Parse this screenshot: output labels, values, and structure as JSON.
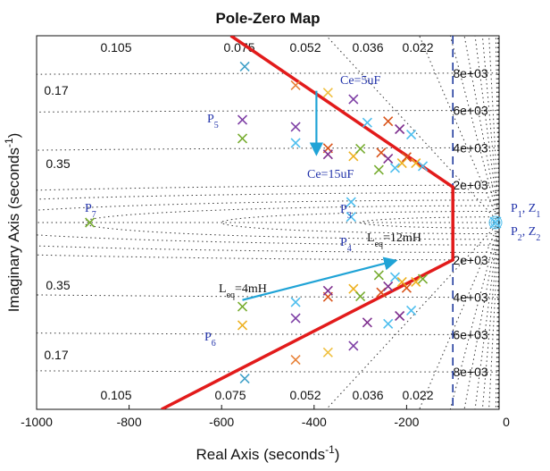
{
  "chart_data": {
    "type": "scatter",
    "title": "Pole-Zero Map",
    "xlabel": "Real Axis (seconds",
    "xlabel_sup": "-1",
    "xlabel_tail": ")",
    "ylabel": "Imaginary Axis (seconds",
    "ylabel_sup": "-1",
    "ylabel_tail": ")",
    "xlim": [
      -1000,
      0
    ],
    "ylim": [
      -10000,
      10000
    ],
    "xticks": [
      -1000,
      -800,
      -600,
      -400,
      -200,
      0
    ],
    "xtick_labels": [
      "-1000",
      "-800",
      "-600",
      "-400",
      "-200",
      "0"
    ],
    "grid": true,
    "damping_lines": [
      {
        "zeta": 0.105,
        "label": "0.105"
      },
      {
        "zeta": 0.075,
        "label": "0.075"
      },
      {
        "zeta": 0.052,
        "label": "0.052"
      },
      {
        "zeta": 0.036,
        "label": "0.036"
      },
      {
        "zeta": 0.022,
        "label": "0.022"
      },
      {
        "zeta": 0.17,
        "label": "0.17"
      },
      {
        "zeta": 0.35,
        "label": "0.35"
      },
      {
        "zeta": 0.007,
        "label": ""
      },
      {
        "zeta": 0.003,
        "label": ""
      },
      {
        "zeta": 0.0012,
        "label": ""
      }
    ],
    "natural_freq_labels": [
      {
        "wn": 8000,
        "label": "8e+03"
      },
      {
        "wn": 6000,
        "label": "6e+03"
      },
      {
        "wn": 4000,
        "label": "4e+03"
      },
      {
        "wn": 2000,
        "label": "2e+03"
      }
    ],
    "stability_boundary_x": -100,
    "poles": [
      {
        "x": -550,
        "y": 8350,
        "color": "#3fa0c8"
      },
      {
        "x": -440,
        "y": 7350,
        "color": "#e8833a"
      },
      {
        "x": -370,
        "y": 6950,
        "color": "#f0c040"
      },
      {
        "x": -315,
        "y": 6600,
        "color": "#7e3fa5"
      },
      {
        "x": -555,
        "y": 5500,
        "color": "#7e3fa5"
      },
      {
        "x": -440,
        "y": 5120,
        "color": "#7e3fa5"
      },
      {
        "x": -555,
        "y": 4500,
        "color": "#77ac30"
      },
      {
        "x": -440,
        "y": 4260,
        "color": "#4dbeee"
      },
      {
        "x": -370,
        "y": 3980,
        "color": "#d95319"
      },
      {
        "x": -370,
        "y": 3650,
        "color": "#7e2f8e"
      },
      {
        "x": -315,
        "y": 3550,
        "color": "#edb120"
      },
      {
        "x": -300,
        "y": 3950,
        "color": "#77ac30"
      },
      {
        "x": -255,
        "y": 3740,
        "color": "#d95319"
      },
      {
        "x": -240,
        "y": 3420,
        "color": "#7e2f8e"
      },
      {
        "x": -210,
        "y": 3180,
        "color": "#edb120"
      },
      {
        "x": -225,
        "y": 2920,
        "color": "#4dbeee"
      },
      {
        "x": -260,
        "y": 2820,
        "color": "#77ac30"
      },
      {
        "x": -285,
        "y": 5350,
        "color": "#4dbeee"
      },
      {
        "x": -240,
        "y": 5420,
        "color": "#d95319"
      },
      {
        "x": -215,
        "y": 5000,
        "color": "#7e2f8e"
      },
      {
        "x": -190,
        "y": 4710,
        "color": "#4dbeee"
      },
      {
        "x": -200,
        "y": 3500,
        "color": "#d95319"
      },
      {
        "x": -180,
        "y": 3180,
        "color": "#edb120"
      },
      {
        "x": -165,
        "y": 3020,
        "color": "#4dbeee"
      },
      {
        "x": -320,
        "y": 1100,
        "color": "#4dbeee"
      },
      {
        "x": -320,
        "y": 300,
        "color": "#4dbeee"
      },
      {
        "x": -885,
        "y": 0,
        "color": "#77ac30"
      },
      {
        "x": -550,
        "y": -8350,
        "color": "#3fa0c8"
      },
      {
        "x": -440,
        "y": -7350,
        "color": "#e8833a"
      },
      {
        "x": -370,
        "y": -6950,
        "color": "#f0c040"
      },
      {
        "x": -315,
        "y": -6600,
        "color": "#7e3fa5"
      },
      {
        "x": -555,
        "y": -5500,
        "color": "#edb120"
      },
      {
        "x": -440,
        "y": -5120,
        "color": "#7e3fa5"
      },
      {
        "x": -555,
        "y": -4500,
        "color": "#77ac30"
      },
      {
        "x": -440,
        "y": -4260,
        "color": "#4dbeee"
      },
      {
        "x": -370,
        "y": -3980,
        "color": "#d95319"
      },
      {
        "x": -370,
        "y": -3650,
        "color": "#7e2f8e"
      },
      {
        "x": -315,
        "y": -3550,
        "color": "#edb120"
      },
      {
        "x": -300,
        "y": -3950,
        "color": "#77ac30"
      },
      {
        "x": -255,
        "y": -3740,
        "color": "#d95319"
      },
      {
        "x": -240,
        "y": -3420,
        "color": "#7e2f8e"
      },
      {
        "x": -210,
        "y": -3180,
        "color": "#edb120"
      },
      {
        "x": -225,
        "y": -2920,
        "color": "#4dbeee"
      },
      {
        "x": -260,
        "y": -2820,
        "color": "#77ac30"
      },
      {
        "x": -285,
        "y": -5350,
        "color": "#7e2f8e"
      },
      {
        "x": -240,
        "y": -5420,
        "color": "#4dbeee"
      },
      {
        "x": -215,
        "y": -5000,
        "color": "#7e2f8e"
      },
      {
        "x": -190,
        "y": -4710,
        "color": "#4dbeee"
      },
      {
        "x": -200,
        "y": -3500,
        "color": "#d95319"
      },
      {
        "x": -180,
        "y": -3180,
        "color": "#edb120"
      },
      {
        "x": -165,
        "y": -3020,
        "color": "#77ac30"
      }
    ],
    "origin_cluster": {
      "x": 0,
      "y": 0,
      "label_top": "P",
      "label_bottom": "P"
    },
    "red_boundary": [
      {
        "x": -580,
        "y": 10000
      },
      {
        "x": -100,
        "y": 1900
      },
      {
        "x": -100,
        "y": -2000
      },
      {
        "x": -730,
        "y": -10000
      }
    ],
    "arrows": [
      {
        "from": [
          -395,
          7050
        ],
        "to": [
          -395,
          3700
        ],
        "color": "#1fa3d6"
      },
      {
        "from": [
          -555,
          -4150
        ],
        "to": [
          -225,
          -2050
        ],
        "color": "#1fa3d6"
      }
    ],
    "annotations": {
      "ce5": "Ce=5uF",
      "ce15": "Ce=15uF",
      "leq4": "L",
      "leq4_sub": "eq",
      "leq4_tail": "=4mH",
      "leq12": "L",
      "leq12_sub": "eq",
      "leq12_tail": "=12mH",
      "p1z1": [
        "P",
        "1",
        ", Z",
        "1"
      ],
      "p2z2": [
        "P",
        "2",
        ", Z",
        "2"
      ],
      "p3": [
        "P",
        "3"
      ],
      "p4": [
        "P",
        "4"
      ],
      "p5": [
        "P",
        "5"
      ],
      "p6": [
        "P",
        "6"
      ],
      "p7": [
        "P",
        "7"
      ]
    }
  }
}
